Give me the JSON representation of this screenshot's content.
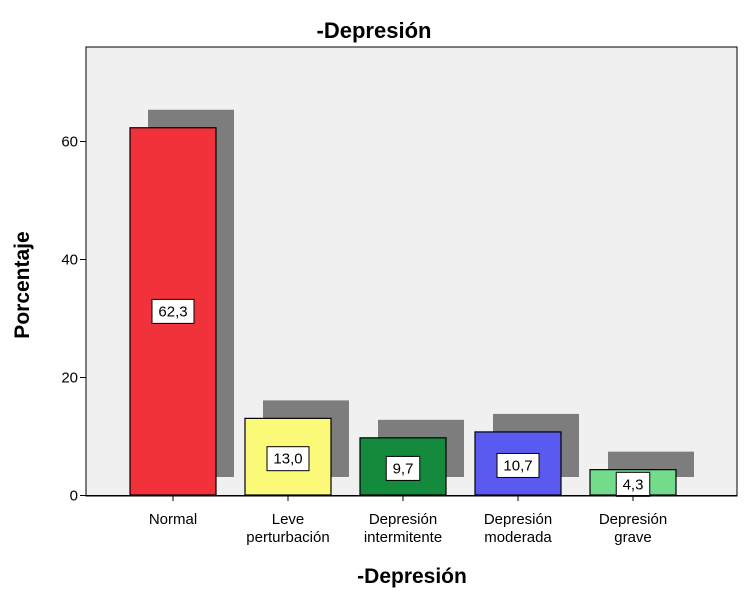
{
  "chart_data": {
    "type": "bar",
    "title": "-Depresión",
    "xlabel": "-Depresión",
    "ylabel": "Porcentaje",
    "categories": [
      [
        "Normal"
      ],
      [
        "Leve",
        "perturbación"
      ],
      [
        "Depresión",
        "intermitente"
      ],
      [
        "Depresión",
        "moderada"
      ],
      [
        "Depresión",
        "grave"
      ]
    ],
    "values": [
      62.3,
      13.0,
      9.7,
      10.7,
      4.3
    ],
    "value_labels": [
      "62,3",
      "13,0",
      "9,7",
      "10,7",
      "4,3"
    ],
    "yticks": [
      0,
      20,
      40,
      60
    ],
    "ylim": [
      0,
      76
    ],
    "grid": false,
    "colors": [
      "#f2323a",
      "#fafa78",
      "#138a3c",
      "#5a5af0",
      "#72dc8c"
    ],
    "shadow_color": "#7d7d7d",
    "plot_background": "#f0f0f0"
  }
}
